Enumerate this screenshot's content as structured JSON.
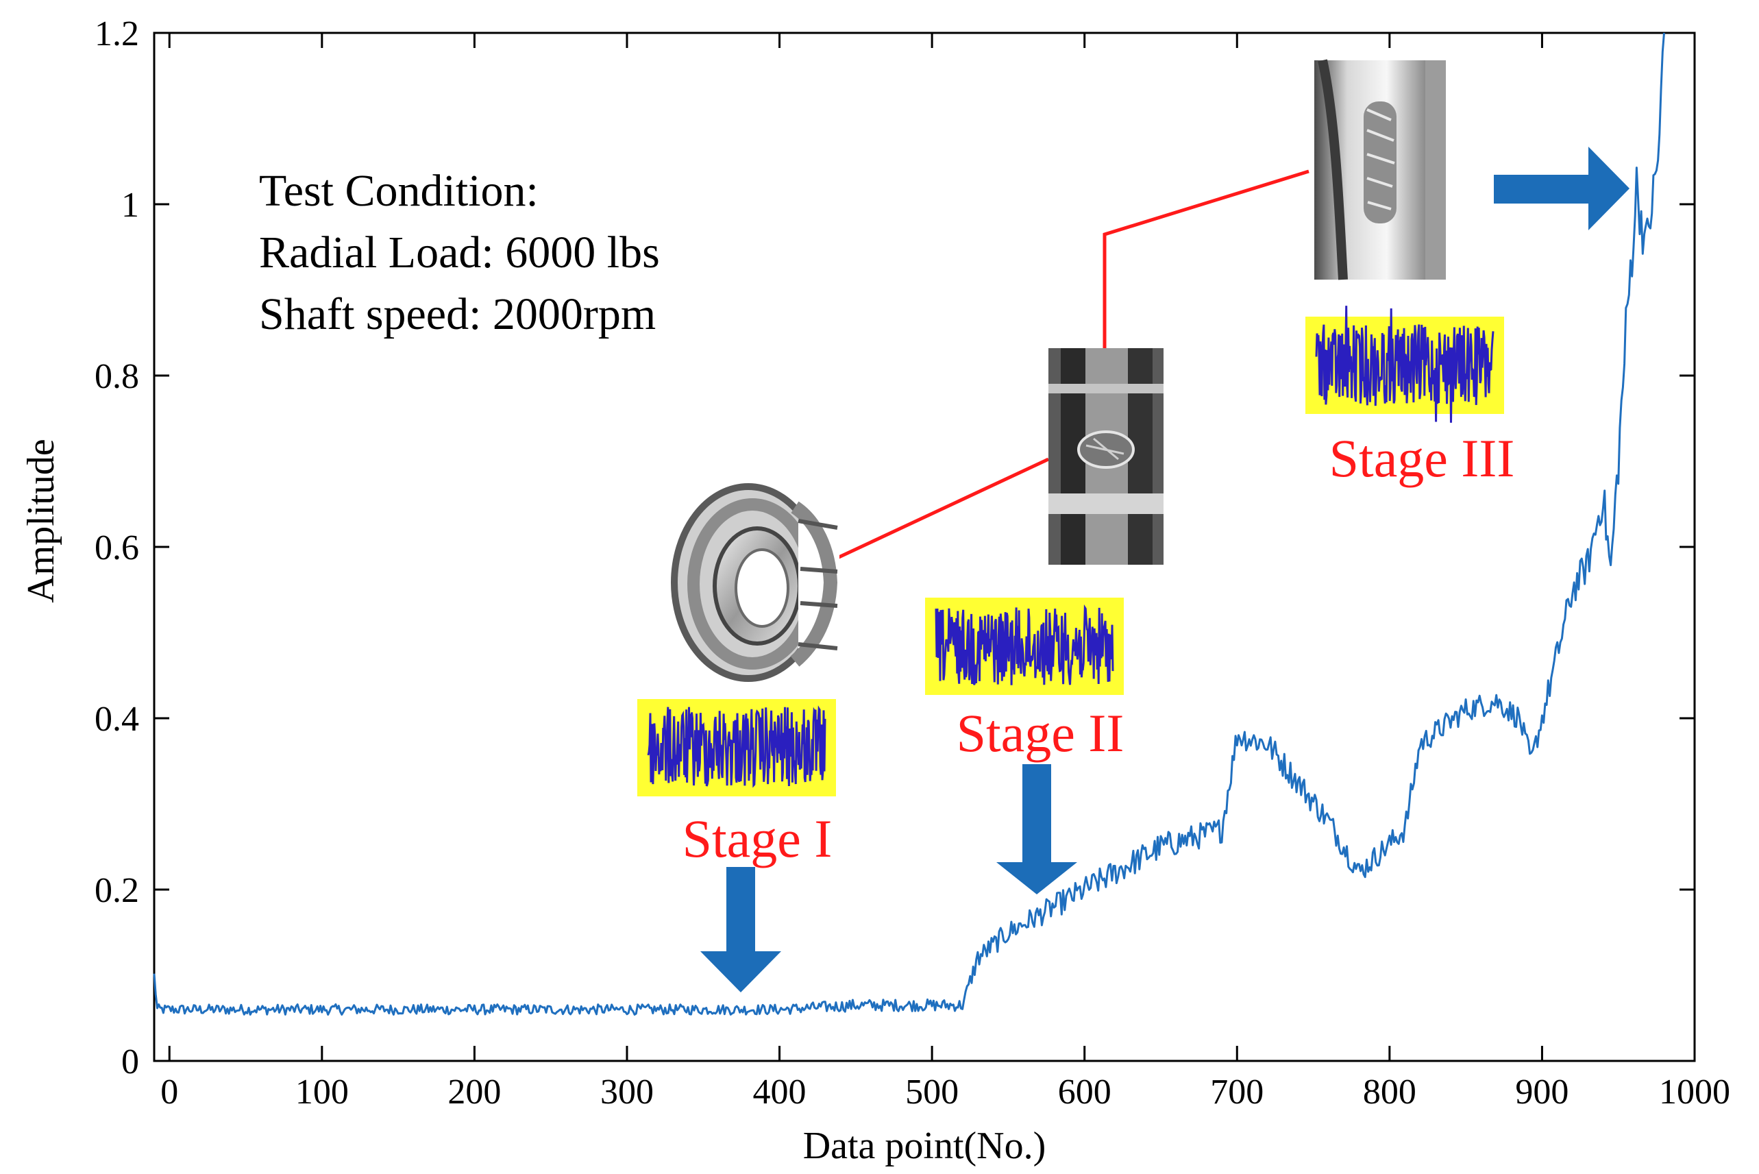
{
  "chart_data": {
    "type": "line",
    "title": "",
    "xlabel": "Data point(No.)",
    "ylabel": "Amplitude",
    "xlim": [
      -10,
      1000
    ],
    "ylim": [
      0,
      1.2
    ],
    "x_ticks": [
      0,
      100,
      200,
      300,
      400,
      500,
      600,
      700,
      800,
      900,
      1000
    ],
    "y_ticks": [
      0,
      0.2,
      0.4,
      0.6,
      0.8,
      1,
      1.2
    ],
    "x_tick_labels": [
      "0",
      "100",
      "200",
      "300",
      "400",
      "500",
      "600",
      "700",
      "800",
      "900",
      "1000"
    ],
    "y_tick_labels": [
      "0",
      "0.2",
      "0.4",
      "0.6",
      "0.8",
      "1",
      "1.2"
    ],
    "grid": false,
    "series": [
      {
        "name": "Amplitude",
        "color": "#1F6FBF",
        "x": [
          -10,
          -8,
          0,
          100,
          200,
          300,
          400,
          450,
          500,
          520,
          530,
          550,
          600,
          650,
          690,
          700,
          720,
          760,
          780,
          810,
          820,
          850,
          870,
          885,
          893,
          900,
          920,
          930,
          940,
          945,
          950,
          955,
          962,
          968,
          972,
          976,
          980
        ],
        "values": [
          0.1,
          0.06,
          0.06,
          0.06,
          0.06,
          0.06,
          0.06,
          0.065,
          0.065,
          0.065,
          0.12,
          0.15,
          0.2,
          0.25,
          0.27,
          0.38,
          0.37,
          0.28,
          0.22,
          0.27,
          0.37,
          0.41,
          0.42,
          0.4,
          0.35,
          0.4,
          0.55,
          0.58,
          0.66,
          0.57,
          0.7,
          0.85,
          1.02,
          0.95,
          1.0,
          1.05,
          1.2
        ],
        "noise": [
          0.006,
          0.006,
          0.006,
          0.006,
          0.006,
          0.006,
          0.006,
          0.007,
          0.007,
          0.007,
          0.012,
          0.013,
          0.015,
          0.016,
          0.015,
          0.015,
          0.016,
          0.015,
          0.014,
          0.014,
          0.014,
          0.014,
          0.014,
          0.014,
          0.012,
          0.015,
          0.02,
          0.02,
          0.025,
          0.025,
          0.03,
          0.035,
          0.035,
          0.03,
          0.03,
          0.03,
          0.03
        ]
      }
    ],
    "annotations": [
      {
        "type": "text",
        "text": "Test Condition:"
      },
      {
        "type": "text",
        "text": "Radial Load: 6000 lbs"
      },
      {
        "type": "text",
        "text": "Shaft speed: 2000rpm"
      },
      {
        "type": "stage",
        "text": "Stage I",
        "arrow_at_x": 380
      },
      {
        "type": "stage",
        "text": "Stage II",
        "arrow_at_x": 568
      },
      {
        "type": "stage",
        "text": "Stage III",
        "arrow_at_x": 940
      }
    ]
  },
  "colors": {
    "line": "#1F6FBF",
    "arrow": "#1C6DB8",
    "stage_text": "#FF1A1A",
    "waveform": "#2A1FBF",
    "waveform_bg": "#FFFF33",
    "connector": "#FF1A1A"
  },
  "icons": {
    "bearing_photo": "bearing-photo-icon",
    "stage2_photo": "inner-race-defect-photo-icon",
    "stage3_photo": "outer-race-spall-photo-icon"
  }
}
